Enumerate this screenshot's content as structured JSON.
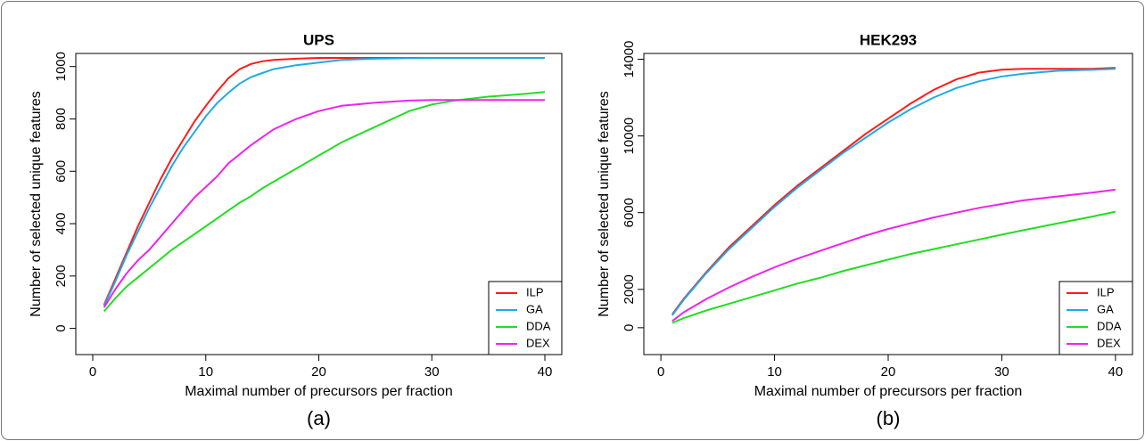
{
  "chart_data": [
    {
      "type": "line",
      "title": "UPS",
      "xlabel": "Maximal number of precursors per fraction",
      "ylabel": "Number of selected unique features",
      "panel_label": "(a)",
      "x": [
        1,
        2,
        3,
        4,
        5,
        6,
        7,
        8,
        9,
        10,
        11,
        12,
        13,
        14,
        15,
        16,
        18,
        20,
        22,
        25,
        28,
        30,
        32,
        35,
        38,
        40
      ],
      "series": [
        {
          "name": "ILP",
          "color": "#ff1a1a",
          "values": [
            90,
            190,
            290,
            390,
            480,
            570,
            650,
            720,
            790,
            850,
            905,
            955,
            990,
            1010,
            1020,
            1025,
            1030,
            1033,
            1033,
            1033,
            1033,
            1033,
            1033,
            1033,
            1033,
            1033
          ]
        },
        {
          "name": "GA",
          "color": "#1eaae6",
          "values": [
            85,
            180,
            280,
            370,
            460,
            540,
            620,
            690,
            750,
            810,
            860,
            900,
            935,
            960,
            975,
            990,
            1005,
            1015,
            1025,
            1030,
            1032,
            1033,
            1033,
            1033,
            1033,
            1033
          ]
        },
        {
          "name": "DDA",
          "color": "#22dd22",
          "values": [
            65,
            115,
            160,
            195,
            230,
            265,
            300,
            330,
            360,
            390,
            420,
            450,
            480,
            505,
            535,
            560,
            610,
            660,
            710,
            770,
            830,
            855,
            870,
            885,
            895,
            903
          ]
        },
        {
          "name": "DEX",
          "color": "#ee22ee",
          "values": [
            80,
            150,
            210,
            260,
            300,
            350,
            400,
            450,
            500,
            540,
            580,
            630,
            665,
            700,
            730,
            760,
            800,
            830,
            850,
            862,
            870,
            872,
            872,
            872,
            872,
            872
          ]
        }
      ],
      "xlim": [
        -1.5,
        41.5
      ],
      "ylim": [
        -100,
        1050
      ],
      "xticks": [
        0,
        10,
        20,
        30,
        40
      ],
      "yticks": [
        0,
        200,
        400,
        600,
        800,
        1000
      ],
      "legend": "bottom-right"
    },
    {
      "type": "line",
      "title": "HEK293",
      "xlabel": "Maximal number of precursors per fraction",
      "ylabel": "Number of selected unique features",
      "panel_label": "(b)",
      "x": [
        1,
        2,
        4,
        6,
        8,
        10,
        12,
        14,
        16,
        18,
        20,
        22,
        24,
        26,
        28,
        30,
        32,
        35,
        38,
        40
      ],
      "series": [
        {
          "name": "ILP",
          "color": "#ff1a1a",
          "values": [
            700,
            1500,
            2900,
            4200,
            5300,
            6400,
            7400,
            8300,
            9200,
            10100,
            10900,
            11700,
            12400,
            12950,
            13300,
            13450,
            13500,
            13500,
            13500,
            13550
          ]
        },
        {
          "name": "GA",
          "color": "#1eaae6",
          "values": [
            650,
            1450,
            2850,
            4100,
            5200,
            6300,
            7300,
            8200,
            9100,
            9900,
            10700,
            11400,
            12000,
            12500,
            12850,
            13100,
            13250,
            13400,
            13450,
            13500
          ]
        },
        {
          "name": "DDA",
          "color": "#22dd22",
          "values": [
            250,
            500,
            900,
            1250,
            1600,
            1950,
            2300,
            2600,
            2950,
            3250,
            3550,
            3850,
            4100,
            4350,
            4600,
            4850,
            5100,
            5450,
            5800,
            6050
          ]
        },
        {
          "name": "DEX",
          "color": "#ee22ee",
          "values": [
            350,
            800,
            1500,
            2100,
            2650,
            3150,
            3600,
            4000,
            4400,
            4800,
            5150,
            5450,
            5750,
            6000,
            6250,
            6450,
            6650,
            6850,
            7050,
            7200
          ]
        }
      ],
      "xlim": [
        -1.5,
        41.5
      ],
      "ylim": [
        -1400,
        14300
      ],
      "xticks": [
        0,
        10,
        20,
        30,
        40
      ],
      "yticks": [
        0,
        2000,
        6000,
        10000,
        14000
      ],
      "legend": "bottom-right"
    }
  ]
}
